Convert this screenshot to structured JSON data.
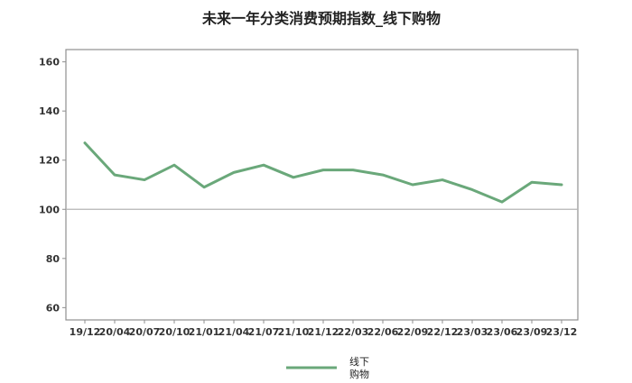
{
  "chart_data": {
    "type": "line",
    "title": "未来一年分类消费预期指数_线下购物",
    "xlabel": "",
    "ylabel": "",
    "ylim": [
      55,
      165
    ],
    "y_ticks": [
      60,
      80,
      100,
      120,
      140,
      160
    ],
    "reference_line": 100,
    "grid": false,
    "legend_position": "bottom",
    "categories": [
      "19/12",
      "20/04",
      "20/07",
      "20/10",
      "21/01",
      "21/04",
      "21/07",
      "21/10",
      "21/12",
      "22/03",
      "22/06",
      "22/09",
      "22/12",
      "23/03",
      "23/06",
      "23/09",
      "23/12"
    ],
    "series": [
      {
        "name": "线下购物",
        "legend_lines": [
          "线下",
          "购物"
        ],
        "color": "#6aa87a",
        "values": [
          127,
          114,
          112,
          118,
          109,
          115,
          118,
          113,
          116,
          116,
          114,
          110,
          112,
          108,
          103,
          111,
          110
        ]
      }
    ]
  }
}
